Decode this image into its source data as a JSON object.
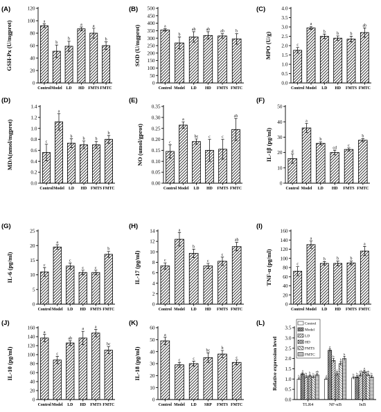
{
  "chart_data": [
    {
      "panel": "(A)",
      "type": "bar",
      "categories": [
        "Control",
        "Model",
        "LD",
        "HD",
        "FMTS",
        "FMTC"
      ],
      "values": [
        92,
        51,
        59,
        87,
        80,
        60
      ],
      "errors": [
        3,
        10,
        8,
        3,
        8,
        6
      ],
      "letters": [
        "a",
        "b",
        "b",
        "a",
        "a",
        "b"
      ],
      "ylabel": "GSH-Px (U/mgprot)",
      "ylim": [
        0,
        120
      ],
      "yticks": [
        "0",
        "20",
        "40",
        "60",
        "80",
        "100",
        "120"
      ]
    },
    {
      "panel": "(B)",
      "type": "bar",
      "categories": [
        "Control",
        "Model",
        "LD",
        "HD",
        "FMTS",
        "FMTC"
      ],
      "values": [
        355,
        268,
        308,
        318,
        315,
        295
      ],
      "errors": [
        8,
        40,
        35,
        25,
        15,
        35
      ],
      "letters": [
        "a",
        "b",
        "ab",
        "ab",
        "ab",
        "b"
      ],
      "ylabel": "SOD (U/mgprot)",
      "ylim": [
        0,
        500
      ],
      "yticks": [
        "0",
        "50",
        "100",
        "150",
        "200",
        "250",
        "300",
        "350",
        "400",
        "450",
        "500"
      ]
    },
    {
      "panel": "(C)",
      "type": "bar",
      "categories": [
        "Control",
        "Model",
        "LD",
        "HD",
        "FMTS",
        "FMTC"
      ],
      "values": [
        1.75,
        2.95,
        2.5,
        2.4,
        2.35,
        2.7
      ],
      "errors": [
        0.15,
        0.08,
        0.12,
        0.12,
        0.15,
        0.25
      ],
      "letters": [
        "c",
        "a",
        "b",
        "b",
        "b",
        "ab"
      ],
      "ylabel": "MPO (U/g)",
      "ylim": [
        0,
        4.0
      ],
      "yticks": [
        "0.0",
        "0.5",
        "1.0",
        "1.5",
        "2.0",
        "2.5",
        "3.0",
        "3.5",
        "4.0"
      ]
    },
    {
      "panel": "(D)",
      "type": "bar",
      "categories": [
        "Control",
        "Model",
        "LD",
        "HD",
        "FMTS",
        "FMTC"
      ],
      "values": [
        0.56,
        1.12,
        0.73,
        0.7,
        0.7,
        0.8
      ],
      "errors": [
        0.15,
        0.15,
        0.08,
        0.07,
        0.06,
        0.07
      ],
      "letters": [
        "c",
        "a",
        "b",
        "b",
        "b",
        "b"
      ],
      "ylabel": "MDA(nmol/mgprot)",
      "ylim": [
        0,
        1.4
      ],
      "yticks": [
        "0.0",
        "0.2",
        "0.4",
        "0.6",
        "0.8",
        "1.0",
        "1.2",
        "1.4"
      ]
    },
    {
      "panel": "(E)",
      "type": "bar",
      "categories": [
        "Control",
        "Model",
        "LD",
        "HD",
        "FMTS",
        "FMTC"
      ],
      "values": [
        0.145,
        0.265,
        0.19,
        0.15,
        0.155,
        0.245
      ],
      "errors": [
        0.03,
        0.015,
        0.012,
        0.05,
        0.045,
        0.05
      ],
      "letters": [
        "c",
        "a",
        "bc",
        "c",
        "c",
        "ab"
      ],
      "ylabel": "NO (umol/gprot)",
      "ylim": [
        0,
        0.35
      ],
      "yticks": [
        "0.00",
        "0.05",
        "0.10",
        "0.15",
        "0.20",
        "0.25",
        "0.30",
        "0.35"
      ]
    },
    {
      "panel": "(F)",
      "type": "bar",
      "categories": [
        "Control",
        "Model",
        "LD",
        "HD",
        "FMTS",
        "FMTC"
      ],
      "values": [
        16,
        36,
        26,
        20,
        22,
        28
      ],
      "errors": [
        3,
        3,
        1,
        1.5,
        1,
        1
      ],
      "letters": [
        "d",
        "a",
        "b",
        "cd",
        "c",
        "b"
      ],
      "ylabel": "IL-1β (pg/ml)",
      "ylim": [
        0,
        50
      ],
      "yticks": [
        "0",
        "10",
        "20",
        "30",
        "40",
        "50"
      ]
    },
    {
      "panel": "(G)",
      "type": "bar",
      "categories": [
        "Control",
        "Model",
        "LD",
        "HD",
        "FMTS",
        "FMTC"
      ],
      "values": [
        11,
        19.5,
        13,
        10.8,
        10.8,
        17
      ],
      "errors": [
        1.5,
        0.8,
        1,
        0.8,
        0.8,
        1
      ],
      "letters": [
        "c",
        "a",
        "c",
        "c",
        "c",
        "b"
      ],
      "ylabel": "IL-6 (pg/ml)",
      "ylim": [
        0,
        25
      ],
      "yticks": [
        "0",
        "5",
        "10",
        "15",
        "20",
        "25"
      ]
    },
    {
      "panel": "(H)",
      "type": "bar",
      "categories": [
        "Control",
        "Model",
        "LD",
        "HD",
        "FMTS",
        "FMTC"
      ],
      "values": [
        7.3,
        12.4,
        9.7,
        7.3,
        8.2,
        11
      ],
      "errors": [
        0.6,
        1.3,
        0.8,
        0.5,
        0.8,
        0.8
      ],
      "letters": [
        "c",
        "a",
        "b",
        "c",
        "c",
        "ab"
      ],
      "ylabel": "IL-17 (pg/ml)",
      "ylim": [
        0,
        14
      ],
      "yticks": [
        "0",
        "2",
        "4",
        "6",
        "8",
        "10",
        "12",
        "14"
      ]
    },
    {
      "panel": "(I)",
      "type": "bar",
      "categories": [
        "Control",
        "Model",
        "LD",
        "HD",
        "FMTS",
        "FMTC"
      ],
      "values": [
        72,
        130,
        89,
        89,
        90,
        116
      ],
      "errors": [
        10,
        8,
        4,
        5,
        4,
        10
      ],
      "letters": [
        "c",
        "a",
        "b",
        "b",
        "b",
        "a"
      ],
      "ylabel": "TNF-α (pg/ml)",
      "ylim": [
        0,
        160
      ],
      "yticks": [
        "0",
        "20",
        "40",
        "60",
        "80",
        "100",
        "120",
        "140",
        "160"
      ]
    },
    {
      "panel": "(J)",
      "type": "bar",
      "categories": [
        "Control",
        "Model",
        "LD",
        "HD",
        "FMTS",
        "FMTC"
      ],
      "values": [
        137,
        88,
        126,
        137,
        148,
        110
      ],
      "errors": [
        8,
        8,
        5,
        15,
        8,
        8
      ],
      "letters": [
        "a",
        "c",
        "ab",
        "a",
        "a",
        "bc"
      ],
      "ylabel": "IL-10 (pg/ml)",
      "ylim": [
        0,
        160
      ],
      "yticks": [
        "0",
        "20",
        "40",
        "60",
        "80",
        "100",
        "120",
        "140",
        "160"
      ]
    },
    {
      "panel": "(K)",
      "type": "bar",
      "categories": [
        "Control",
        "Model",
        "LD",
        "SRP",
        "FMTS",
        "FMTC"
      ],
      "values": [
        49,
        29,
        30,
        35,
        38,
        31
      ],
      "errors": [
        3,
        2,
        2,
        4,
        3,
        2
      ],
      "letters": [
        "a",
        "c",
        "c",
        "bc",
        "b",
        "c"
      ],
      "ylabel": "IL-18 (pg/ml)",
      "ylim": [
        0,
        60
      ],
      "yticks": [
        "0",
        "10",
        "20",
        "30",
        "40",
        "50",
        "60"
      ]
    },
    {
      "panel": "(L)",
      "type": "bar",
      "categories": [
        "TLR4",
        "NF-κB",
        "IκB"
      ],
      "series": [
        {
          "name": "Control",
          "values": [
            1.0,
            1.0,
            1.05
          ],
          "errors": [
            0.05,
            0.05,
            0.06
          ],
          "letters": [
            "b",
            "d",
            "b"
          ]
        },
        {
          "name": "Model",
          "values": [
            1.25,
            2.4,
            1.1
          ],
          "errors": [
            0.06,
            0.08,
            0.06
          ],
          "letters": [
            "a",
            "a",
            "b"
          ]
        },
        {
          "name": "LD",
          "values": [
            1.1,
            1.9,
            1.2
          ],
          "errors": [
            0.06,
            0.1,
            0.08
          ],
          "letters": [
            "b",
            "b",
            "ab"
          ]
        },
        {
          "name": "HD",
          "values": [
            1.15,
            1.25,
            1.35
          ],
          "errors": [
            0.06,
            0.1,
            0.08
          ],
          "letters": [
            "b",
            "c",
            "a"
          ]
        },
        {
          "name": "FMTS",
          "values": [
            1.1,
            1.75,
            1.2
          ],
          "errors": [
            0.05,
            0.1,
            0.06
          ],
          "letters": [
            "b",
            "b",
            "ab"
          ]
        },
        {
          "name": "FMTC",
          "values": [
            1.2,
            2.0,
            1.1
          ],
          "errors": [
            0.06,
            0.1,
            0.06
          ],
          "letters": [
            "ab",
            "b",
            "b"
          ]
        }
      ],
      "ylabel": "Relative expression level",
      "ylim": [
        0,
        3.5
      ],
      "yticks": [
        "0.0",
        "0.5",
        "1.0",
        "1.5",
        "2.0",
        "2.5",
        "3.0",
        "3.5"
      ],
      "legend": "top-left"
    }
  ]
}
